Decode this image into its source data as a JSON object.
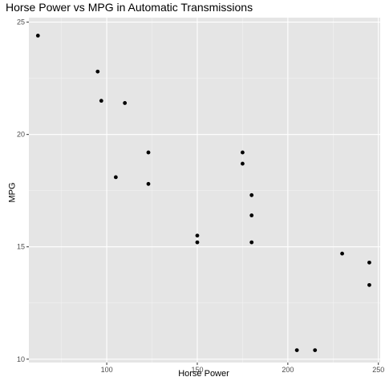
{
  "chart_data": {
    "type": "scatter",
    "title": "Horse Power vs MPG in Automatic Transmissions",
    "xlabel": "Horse Power",
    "ylabel": "MPG",
    "xlim": [
      57,
      251
    ],
    "ylim": [
      9.85,
      25.2
    ],
    "x_ticks": [
      100,
      150,
      200,
      250
    ],
    "y_ticks": [
      10,
      15,
      20,
      25
    ],
    "grid": true,
    "legend": "none",
    "colors": {
      "panel_background": "#e5e5e5",
      "grid_major": "#ffffff",
      "grid_minor": "#f2f2f2",
      "point": "#000000",
      "tick_label": "#4d4d4d"
    },
    "points": [
      {
        "x": 62,
        "y": 24.4
      },
      {
        "x": 95,
        "y": 22.8
      },
      {
        "x": 97,
        "y": 21.5
      },
      {
        "x": 110,
        "y": 21.4
      },
      {
        "x": 105,
        "y": 18.1
      },
      {
        "x": 123,
        "y": 19.2
      },
      {
        "x": 123,
        "y": 17.8
      },
      {
        "x": 150,
        "y": 15.5
      },
      {
        "x": 150,
        "y": 15.2
      },
      {
        "x": 175,
        "y": 19.2
      },
      {
        "x": 175,
        "y": 18.7
      },
      {
        "x": 180,
        "y": 17.3
      },
      {
        "x": 180,
        "y": 16.4
      },
      {
        "x": 180,
        "y": 15.2
      },
      {
        "x": 205,
        "y": 10.4
      },
      {
        "x": 215,
        "y": 10.4
      },
      {
        "x": 230,
        "y": 14.7
      },
      {
        "x": 245,
        "y": 14.3
      },
      {
        "x": 245,
        "y": 13.3
      }
    ]
  }
}
